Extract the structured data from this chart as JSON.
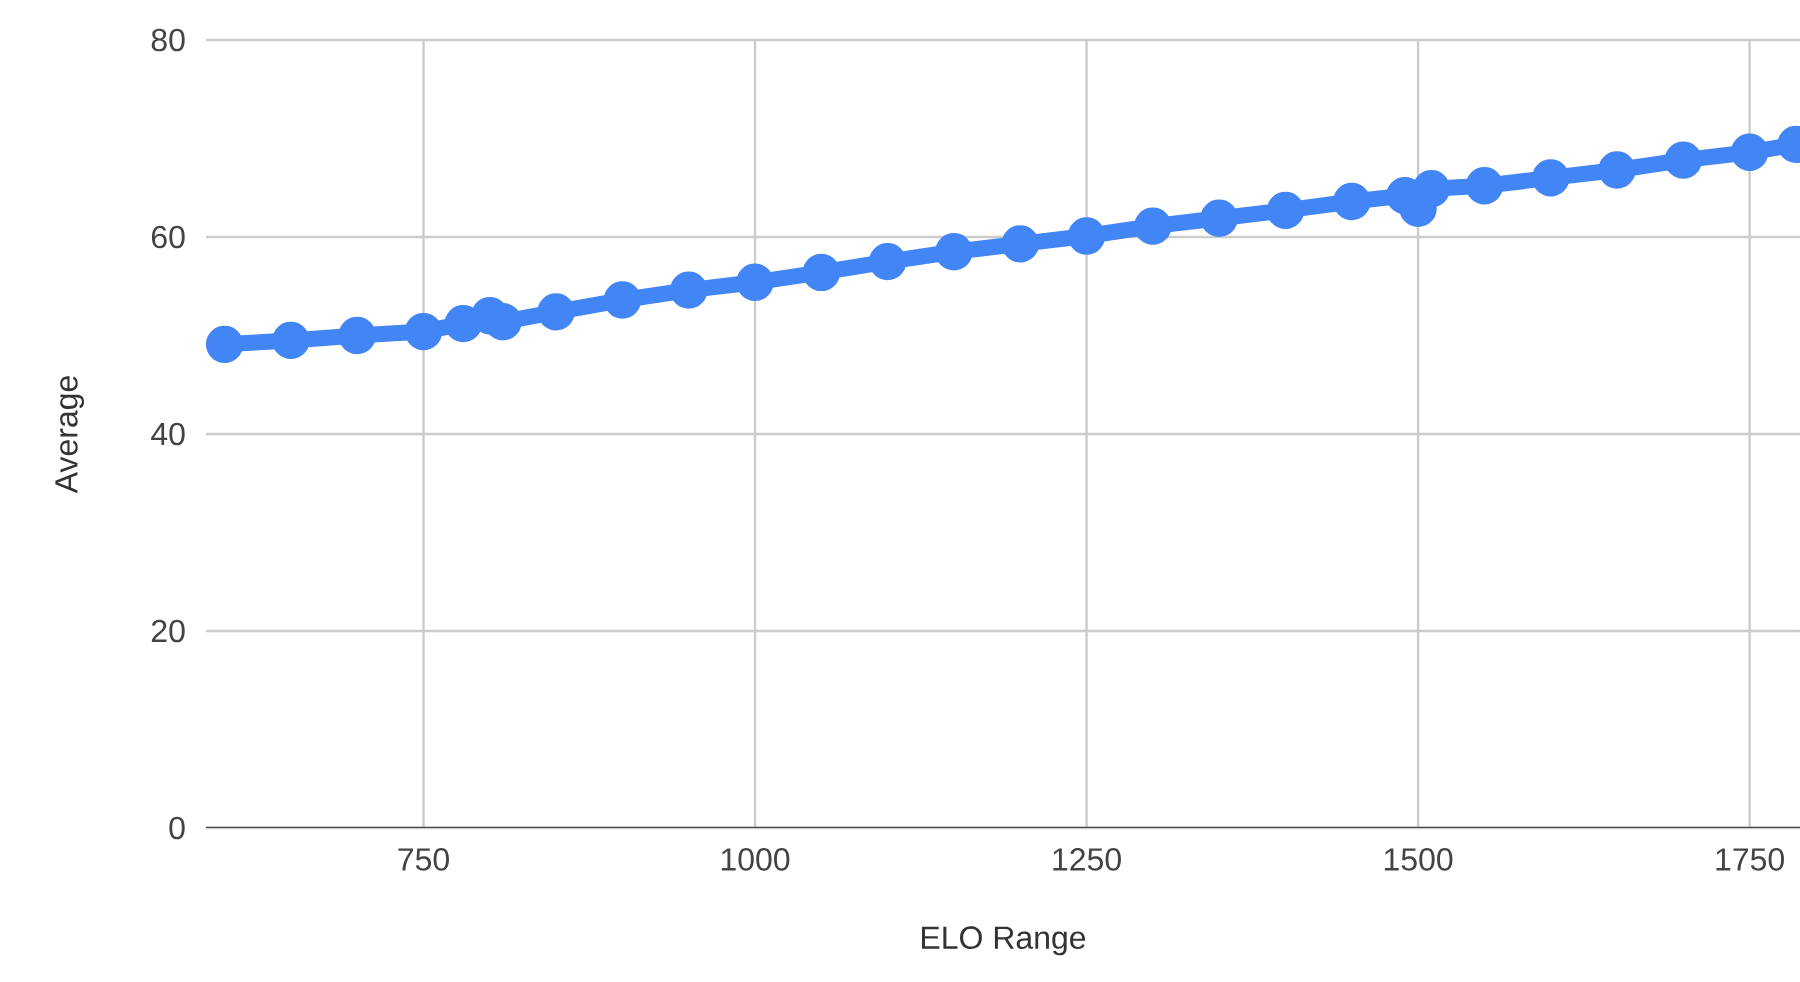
{
  "chart_data": {
    "type": "line",
    "xlabel": "ELO Range",
    "ylabel": "Average",
    "x": [
      600,
      650,
      700,
      750,
      780,
      800,
      810,
      850,
      900,
      950,
      1000,
      1050,
      1100,
      1150,
      1200,
      1250,
      1300,
      1350,
      1400,
      1450,
      1490,
      1500,
      1510,
      1550,
      1600,
      1650,
      1700,
      1750,
      1785
    ],
    "series": [
      {
        "color": "#4285f4",
        "values": [
          49.1,
          49.5,
          50.0,
          50.4,
          51.2,
          52.0,
          51.4,
          52.4,
          53.6,
          54.6,
          55.4,
          56.4,
          57.5,
          58.5,
          59.3,
          60.1,
          61.1,
          61.9,
          62.7,
          63.6,
          64.2,
          62.9,
          64.9,
          65.2,
          66.0,
          66.8,
          67.8,
          68.6,
          69.4
        ]
      }
    ],
    "xlim": [
      586,
      1788
    ],
    "xticks": [
      750,
      1000,
      1250,
      1500,
      1750
    ],
    "ylim": [
      0,
      80
    ],
    "yticks": [
      0,
      20,
      40,
      60,
      80
    ],
    "grid": true,
    "marker": "circle",
    "line_style": "solid"
  }
}
